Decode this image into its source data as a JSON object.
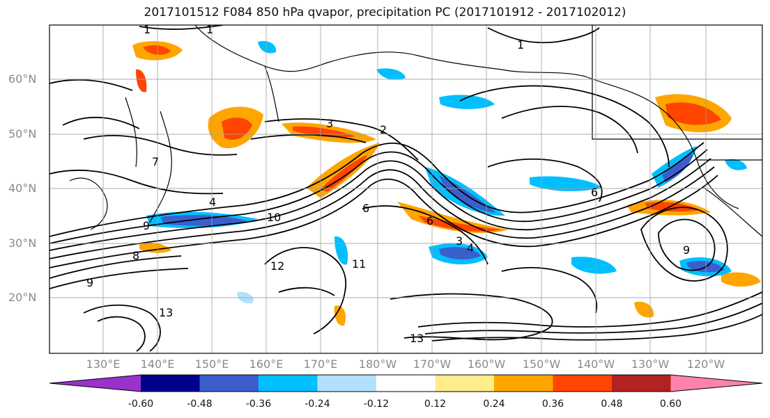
{
  "title": "2017101512 F084 850 hPa qvapor, precipitation PC (2017101912 - 2017102012)",
  "lat_labels": [
    "60°N",
    "50°N",
    "40°N",
    "30°N",
    "20°N"
  ],
  "lon_labels": [
    "130°E",
    "140°E",
    "150°E",
    "160°E",
    "170°E",
    "180°W",
    "170°W",
    "160°W",
    "150°W",
    "140°W",
    "130°W",
    "120°W"
  ],
  "colorbar": {
    "tick_labels": [
      "-0.60",
      "-0.48",
      "-0.36",
      "-0.24",
      "-0.12",
      "0.12",
      "0.24",
      "0.36",
      "0.48",
      "0.60"
    ],
    "colors": [
      "#9932cc",
      "#00008b",
      "#3a5fcd",
      "#00bfff",
      "#b0e2ff",
      "#ffffff",
      "#ffec8b",
      "#ffa500",
      "#ff4500",
      "#b22222",
      "#ff82ab"
    ]
  },
  "contour_labels": [
    "1",
    "1",
    "1",
    "3",
    "2",
    "4",
    "6",
    "6",
    "6",
    "9",
    "9",
    "9",
    "10",
    "12",
    "13",
    "13",
    "11",
    "3",
    "4",
    "7",
    "8"
  ],
  "colors": {
    "grid": "#a0a0a0",
    "contour": "#000000",
    "land": "#000000",
    "axis_label": "#8a8a8a"
  }
}
